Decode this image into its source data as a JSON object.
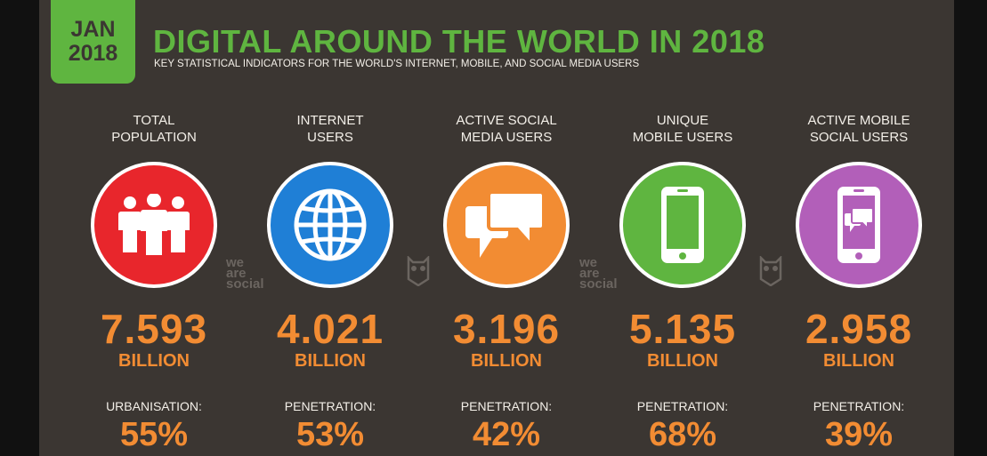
{
  "header": {
    "date_month": "JAN",
    "date_year": "2018",
    "title": "DIGITAL AROUND THE WORLD IN 2018",
    "subtitle": "KEY STATISTICAL INDICATORS FOR THE WORLD'S INTERNET, MOBILE, AND SOCIAL MEDIA USERS"
  },
  "watermark": {
    "line1": "we",
    "line2": "are",
    "line3": "social"
  },
  "stats": [
    {
      "label": "TOTAL\nPOPULATION",
      "icon": "people-icon",
      "color": "#e8262c",
      "value": "7.593",
      "unit": "BILLION",
      "sub_label": "URBANISATION:",
      "sub_value": "55%"
    },
    {
      "label": "INTERNET\nUSERS",
      "icon": "globe-icon",
      "color": "#1f7fd6",
      "value": "4.021",
      "unit": "BILLION",
      "sub_label": "PENETRATION:",
      "sub_value": "53%"
    },
    {
      "label": "ACTIVE SOCIAL\nMEDIA USERS",
      "icon": "chat-bubbles-icon",
      "color": "#f28c33",
      "value": "3.196",
      "unit": "BILLION",
      "sub_label": "PENETRATION:",
      "sub_value": "42%"
    },
    {
      "label": "UNIQUE\nMOBILE USERS",
      "icon": "smartphone-icon",
      "color": "#5fb540",
      "value": "5.135",
      "unit": "BILLION",
      "sub_label": "PENETRATION:",
      "sub_value": "68%"
    },
    {
      "label": "ACTIVE MOBILE\nSOCIAL USERS",
      "icon": "mobile-chat-icon",
      "color": "#b25fb9",
      "value": "2.958",
      "unit": "BILLION",
      "sub_label": "PENETRATION:",
      "sub_value": "39%"
    }
  ]
}
